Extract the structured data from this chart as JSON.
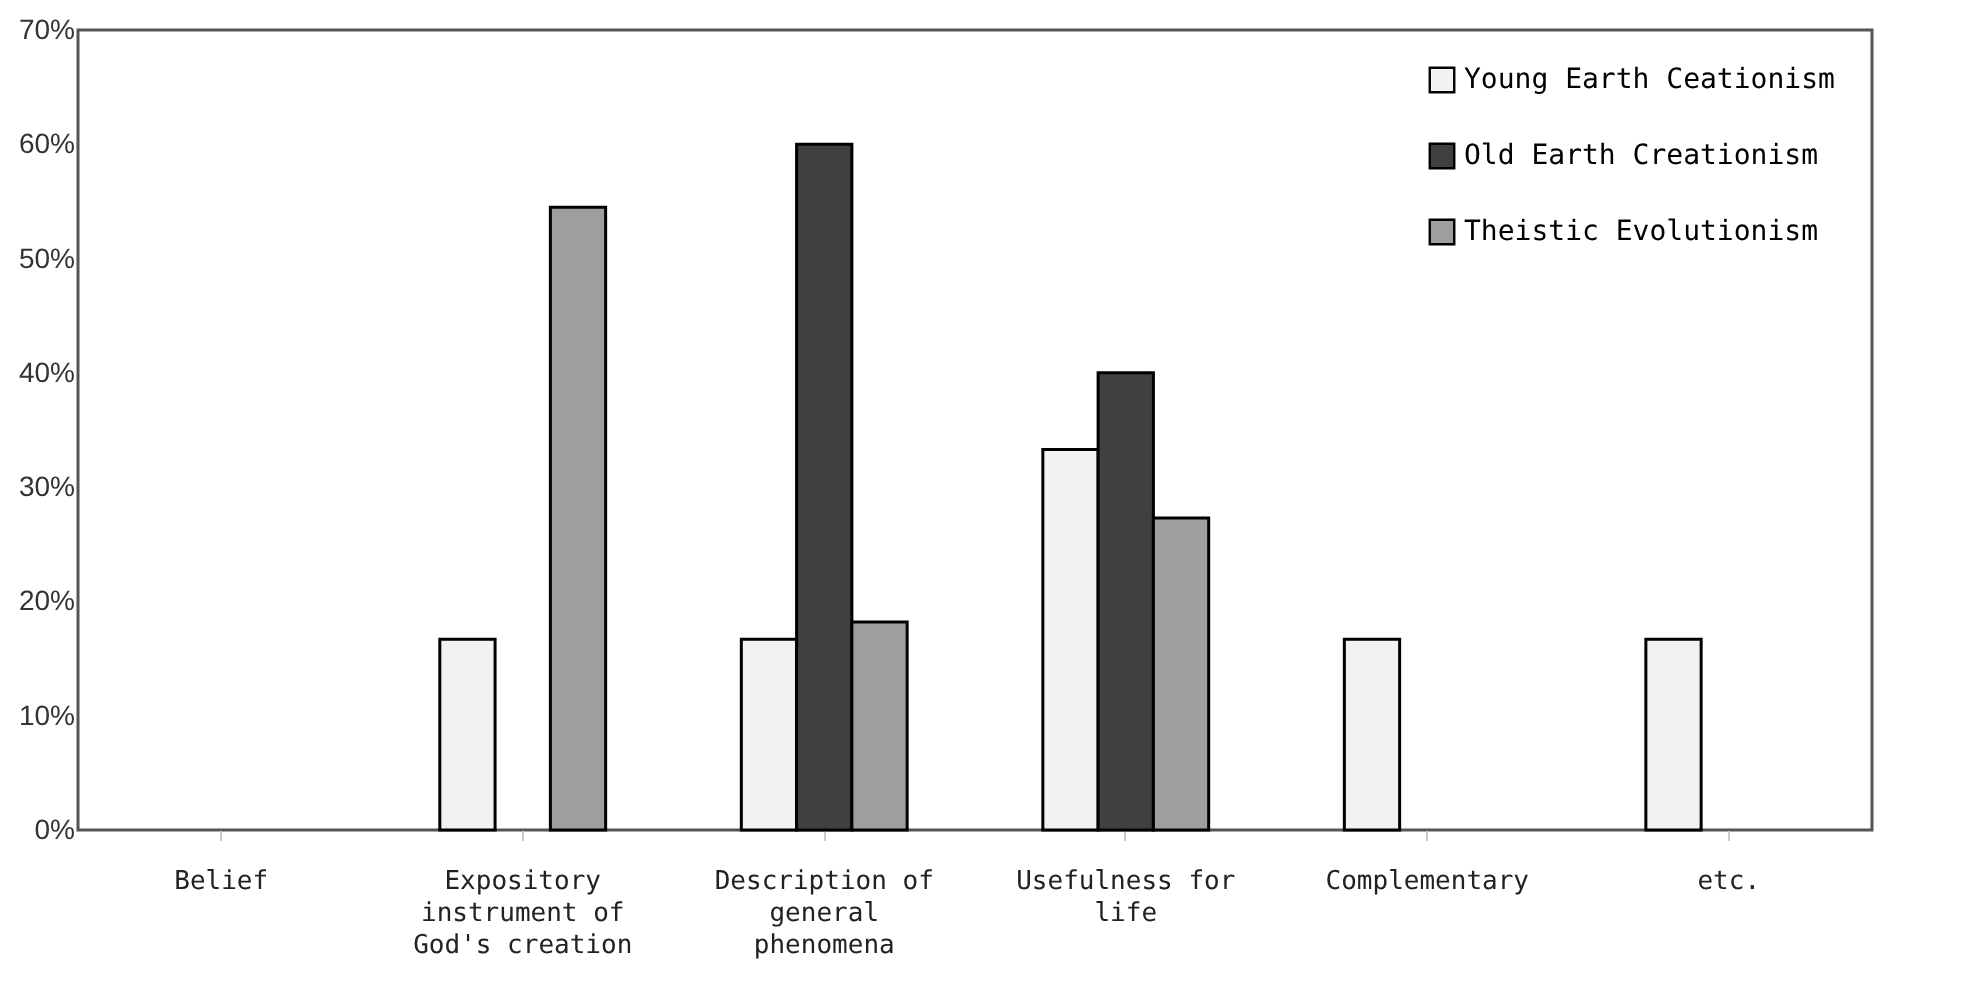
{
  "chart_data": {
    "type": "bar",
    "categories": [
      "Belief",
      "Expository instrument of God's creation",
      "Description of general phenomena",
      "Usefulness for life",
      "Complementary",
      "etc."
    ],
    "series": [
      {
        "name": "Young Earth Ceationism",
        "color": "#f2f2f2",
        "values": [
          null,
          16.7,
          16.7,
          33.3,
          16.7,
          16.7
        ]
      },
      {
        "name": "Old Earth Creationism",
        "color": "#404040",
        "values": [
          null,
          null,
          60,
          40,
          null,
          null
        ]
      },
      {
        "name": "Theistic Evolutionism",
        "color": "#9e9e9e",
        "values": [
          null,
          54.5,
          18.2,
          27.3,
          null,
          null
        ]
      }
    ],
    "ylim": [
      0,
      70
    ],
    "yticks": [
      {
        "value": 0,
        "label": "0%"
      },
      {
        "value": 10,
        "label": "10%"
      },
      {
        "value": 20,
        "label": "20%"
      },
      {
        "value": 30,
        "label": "30%"
      },
      {
        "value": 40,
        "label": "40%"
      },
      {
        "value": 50,
        "label": "50%"
      },
      {
        "value": 60,
        "label": "60%"
      },
      {
        "value": 70,
        "label": "70%"
      }
    ],
    "grid": false,
    "legend": "top right"
  }
}
